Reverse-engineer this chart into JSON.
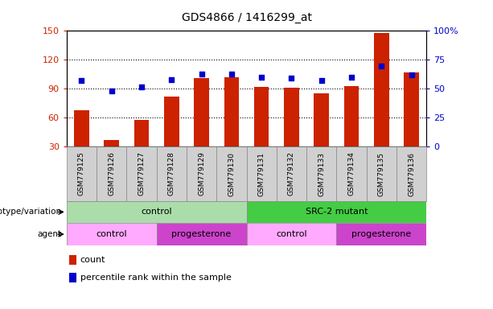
{
  "title": "GDS4866 / 1416299_at",
  "samples": [
    "GSM779125",
    "GSM779126",
    "GSM779127",
    "GSM779128",
    "GSM779129",
    "GSM779130",
    "GSM779131",
    "GSM779132",
    "GSM779133",
    "GSM779134",
    "GSM779135",
    "GSM779136"
  ],
  "counts": [
    68,
    37,
    58,
    82,
    101,
    102,
    92,
    91,
    85,
    93,
    148,
    107
  ],
  "percentiles": [
    57,
    48,
    52,
    58,
    63,
    63,
    60,
    59,
    57,
    60,
    70,
    62
  ],
  "ylim_left": [
    30,
    150
  ],
  "ylim_right": [
    0,
    100
  ],
  "yticks_left": [
    30,
    60,
    90,
    120,
    150
  ],
  "yticks_right": [
    0,
    25,
    50,
    75,
    100
  ],
  "yticklabels_right": [
    "0",
    "25",
    "50",
    "75",
    "100%"
  ],
  "bar_color": "#cc2200",
  "dot_color": "#0000cc",
  "grid_color": "#000000",
  "bar_width": 0.5,
  "genotype_groups": [
    {
      "label": "control",
      "start": 0,
      "end": 5,
      "color": "#aaddaa"
    },
    {
      "label": "SRC-2 mutant",
      "start": 6,
      "end": 11,
      "color": "#44cc44"
    }
  ],
  "agent_groups": [
    {
      "label": "control",
      "start": 0,
      "end": 2,
      "color": "#ffaaff"
    },
    {
      "label": "progesterone",
      "start": 3,
      "end": 5,
      "color": "#cc44cc"
    },
    {
      "label": "control",
      "start": 6,
      "end": 8,
      "color": "#ffaaff"
    },
    {
      "label": "progesterone",
      "start": 9,
      "end": 11,
      "color": "#cc44cc"
    }
  ],
  "legend_count_label": "count",
  "legend_pct_label": "percentile rank within the sample",
  "genotype_label": "genotype/variation",
  "agent_label": "agent",
  "title_fontsize": 10,
  "tick_fontsize": 8,
  "left_tick_color": "#cc2200",
  "right_tick_color": "#0000cc",
  "sample_bg_color": "#d0d0d0",
  "sample_edge_color": "#888888"
}
